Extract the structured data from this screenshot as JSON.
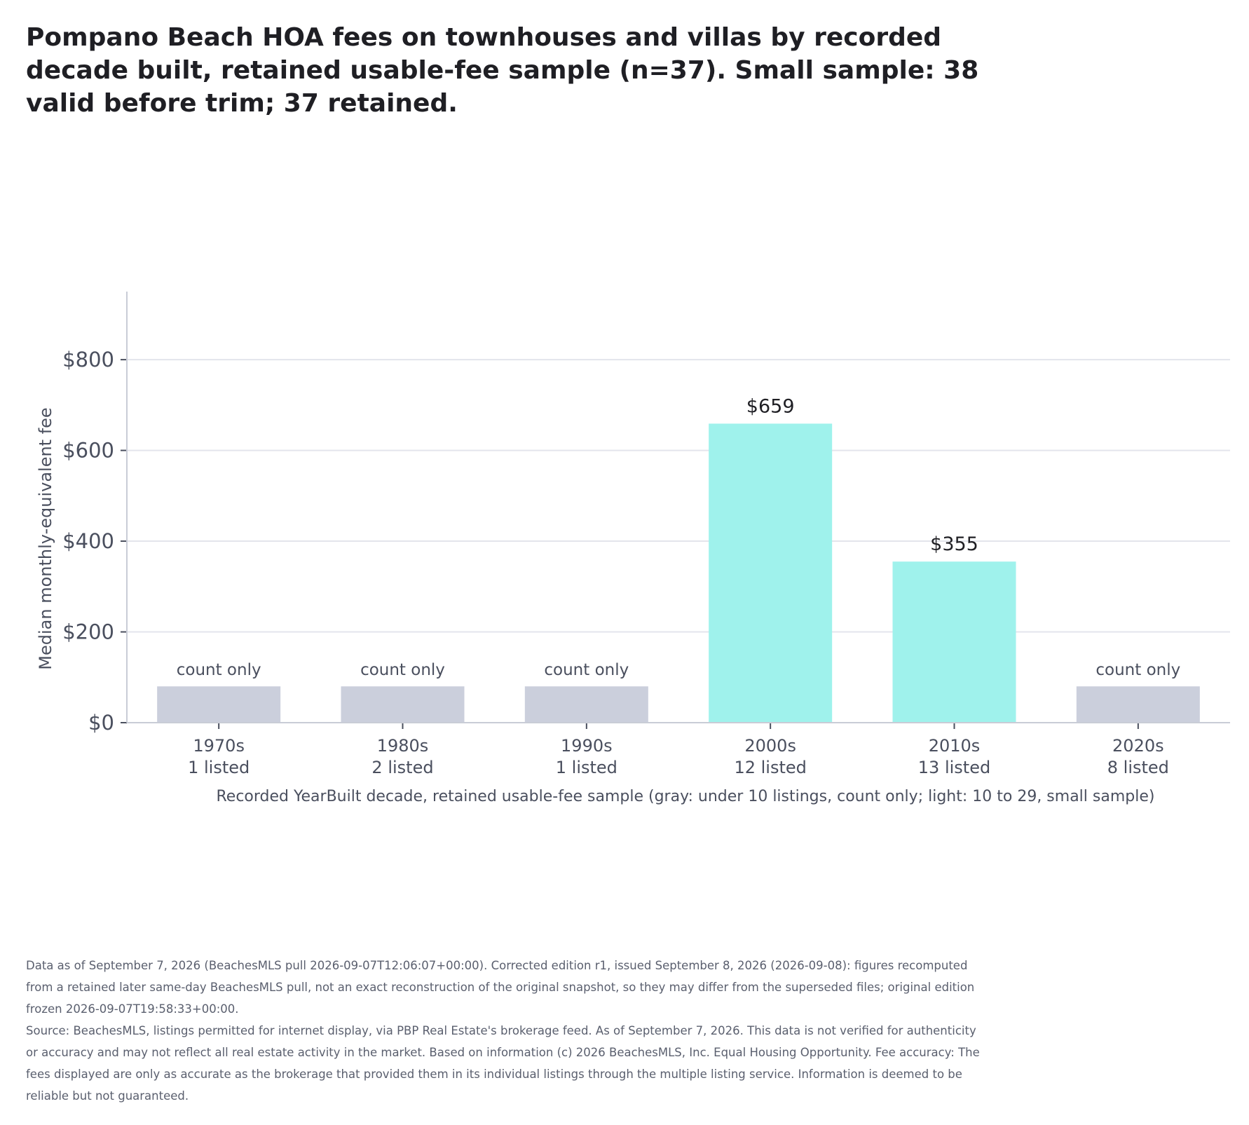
{
  "title": "Pompano Beach HOA fees on townhouses and villas by recorded decade built, retained usable-fee sample (n=37). Small sample: 38 valid before trim; 37 retained.",
  "chart_data": {
    "type": "bar",
    "title": "Pompano Beach HOA fees on townhouses and villas by recorded decade built, retained usable-fee sample (n=37). Small sample: 38 valid before trim; 37 retained.",
    "xlabel": "Recorded YearBuilt decade, retained usable-fee sample (gray: under 10 listings, count only; light: 10 to 29, small sample)",
    "ylabel": "Median monthly-equivalent fee",
    "ylim": [
      0,
      950
    ],
    "y_ticks": [
      0,
      200,
      400,
      600,
      800
    ],
    "y_tick_labels": [
      "$0",
      "$200",
      "$400",
      "$600",
      "$800"
    ],
    "categories": [
      "1970s",
      "1980s",
      "1990s",
      "2000s",
      "2010s",
      "2020s"
    ],
    "counts_labels": [
      "1 listed",
      "2 listed",
      "1 listed",
      "12 listed",
      "13 listed",
      "8 listed"
    ],
    "values": [
      null,
      null,
      null,
      659,
      355,
      null
    ],
    "placeholder_bar_value": 80,
    "bar_labels": [
      "count only",
      "count only",
      "count only",
      "$659",
      "$355",
      "count only"
    ],
    "bar_status": [
      "count_only",
      "count_only",
      "count_only",
      "small_sample",
      "small_sample",
      "count_only"
    ],
    "grid": true,
    "legend": "none",
    "colors": {
      "count_only": "#cbcfdc",
      "small_sample": "#9ff2ec",
      "grid": "#e3e5ec",
      "axis": "#c9ccd6",
      "value_label": "#1f1f24",
      "muted_label": "#4a4f5e",
      "tick_label": "#4a4f5e"
    }
  },
  "footer": {
    "line1": "Data as of September 7, 2026 (BeachesMLS pull 2026-09-07T12:06:07+00:00). Corrected edition r1, issued September 8, 2026 (2026-09-08): figures recomputed from a retained later same-day BeachesMLS pull, not an exact reconstruction of the original snapshot, so they may differ from the superseded files; original edition frozen 2026-09-07T19:58:33+00:00.",
    "line2": "Source: BeachesMLS, listings permitted for internet display, via PBP Real Estate's brokerage feed. As of September 7, 2026. This data is not verified for authenticity or accuracy and may not reflect all real estate activity in the market. Based on information (c) 2026 BeachesMLS, Inc. Equal Housing Opportunity. Fee accuracy: The fees displayed are only as accurate as the brokerage that provided them in its individual listings through the multiple listing service. Information is deemed to be reliable but not guaranteed."
  }
}
